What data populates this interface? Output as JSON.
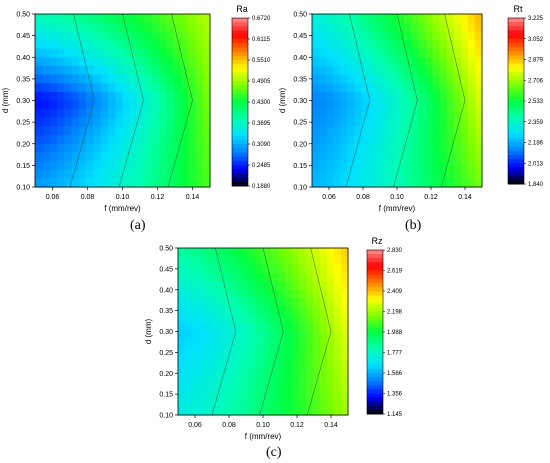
{
  "colorscale": [
    "#000000",
    "#0000ff",
    "#0080ff",
    "#00e0ff",
    "#00ffb0",
    "#00ff40",
    "#80ff00",
    "#ffff00",
    "#ff8000",
    "#ff0000",
    "#ff9090"
  ],
  "chart_data": [
    {
      "type": "heatmap",
      "panel_label": "(a)",
      "xlabel": "f (mm/rev)",
      "ylabel": "d (mm)",
      "x_ticks": [
        "0.06",
        "0.08",
        "0.10",
        "0.12",
        "0.14"
      ],
      "y_ticks": [
        "0.10",
        "0.15",
        "0.20",
        "0.25",
        "0.30",
        "0.35",
        "0.40",
        "0.45",
        "0.50"
      ],
      "xlim": [
        0.05,
        0.15
      ],
      "ylim": [
        0.1,
        0.5
      ],
      "legend_title": "Ra",
      "legend_ticks": [
        "0.1880",
        "0.2485",
        "0.3090",
        "0.3695",
        "0.4300",
        "0.4905",
        "0.5510",
        "0.6115",
        "0.6720"
      ],
      "vmin": 0.188,
      "vmax": 0.672,
      "corner_values": {
        "x_min_y_min": 0.3,
        "x_min_y_mid": 0.24,
        "x_min_y_max": 0.38,
        "x_mid_y_mid": 0.34,
        "x_max_y_min": 0.46,
        "x_max_y_max": 0.5
      },
      "grid": false
    },
    {
      "type": "heatmap",
      "panel_label": "(b)",
      "xlabel": "f (mm/rev)",
      "ylabel": "d (mm)",
      "x_ticks": [
        "0.06",
        "0.08",
        "0.10",
        "0.12",
        "0.14"
      ],
      "y_ticks": [
        "0.10",
        "0.15",
        "0.20",
        "0.25",
        "0.30",
        "0.35",
        "0.40",
        "0.45",
        "0.50"
      ],
      "xlim": [
        0.05,
        0.15
      ],
      "ylim": [
        0.1,
        0.5
      ],
      "legend_title": "Rt",
      "legend_ticks": [
        "1.840",
        "2.013",
        "2.186",
        "2.359",
        "2.533",
        "2.706",
        "2.879",
        "3.052",
        "3.225"
      ],
      "vmin": 1.84,
      "vmax": 3.225,
      "corner_values": {
        "x_min_y_min": 2.2,
        "x_min_y_mid": 2.12,
        "x_min_y_max": 2.33,
        "x_mid_y_mid": 2.3,
        "x_max_y_min": 2.66,
        "x_max_y_max": 2.9
      },
      "grid": false
    },
    {
      "type": "heatmap",
      "panel_label": "(c)",
      "xlabel": "f (mm/rev)",
      "ylabel": "d (mm)",
      "x_ticks": [
        "0.06",
        "0.08",
        "0.10",
        "0.12",
        "0.14"
      ],
      "y_ticks": [
        "0.10",
        "0.15",
        "0.20",
        "0.25",
        "0.30",
        "0.35",
        "0.40",
        "0.45",
        "0.50"
      ],
      "xlim": [
        0.05,
        0.15
      ],
      "ylim": [
        0.1,
        0.5
      ],
      "legend_title": "Rz",
      "legend_ticks": [
        "1.145",
        "1.356",
        "1.566",
        "1.777",
        "1.988",
        "2.198",
        "2.409",
        "2.619",
        "2.830"
      ],
      "vmin": 1.145,
      "vmax": 2.83,
      "corner_values": {
        "x_min_y_min": 1.72,
        "x_min_y_mid": 1.62,
        "x_min_y_max": 1.85,
        "x_mid_y_mid": 1.78,
        "x_max_y_min": 2.2,
        "x_max_y_max": 2.4
      },
      "grid": false
    }
  ]
}
